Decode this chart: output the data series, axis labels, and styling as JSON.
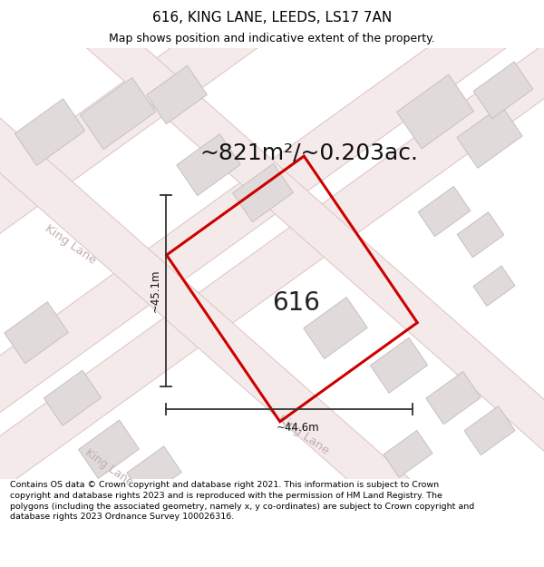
{
  "title": "616, KING LANE, LEEDS, LS17 7AN",
  "subtitle": "Map shows position and indicative extent of the property.",
  "area_label": "~821m²/~0.203ac.",
  "plot_number": "616",
  "dim_width": "~44.6m",
  "dim_height": "~45.1m",
  "footer": "Contains OS data © Crown copyright and database right 2021. This information is subject to Crown copyright and database rights 2023 and is reproduced with the permission of HM Land Registry. The polygons (including the associated geometry, namely x, y co-ordinates) are subject to Crown copyright and database rights 2023 Ordnance Survey 100026316.",
  "map_bg": "#ffffff",
  "road_fill": "#f5eaea",
  "road_stroke": "#e8c8c8",
  "building_fill": "#e0dada",
  "building_stroke": "#c8c0c0",
  "plot_stroke": "#cc0000",
  "plot_fill": "none",
  "dim_color": "#333333",
  "road_label_color": "#c0b0b0",
  "title_fontsize": 11,
  "subtitle_fontsize": 9,
  "area_fontsize": 18,
  "plot_num_fontsize": 20,
  "footer_fontsize": 6.8,
  "road_label_fontsize": 9.5
}
